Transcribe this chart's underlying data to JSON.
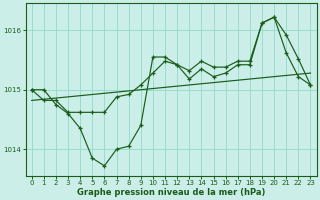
{
  "title": "Graphe pression niveau de la mer (hPa)",
  "background_color": "#cceee8",
  "grid_color": "#99ddcc",
  "line_color": "#1a5c1a",
  "x_ticks": [
    0,
    1,
    2,
    3,
    4,
    5,
    6,
    7,
    8,
    9,
    10,
    11,
    12,
    13,
    14,
    15,
    16,
    17,
    18,
    19,
    20,
    21,
    22,
    23
  ],
  "y_ticks": [
    1014,
    1015,
    1016
  ],
  "ylim": [
    1013.55,
    1016.45
  ],
  "xlim": [
    -0.5,
    23.5
  ],
  "y_main": [
    1015.0,
    1015.0,
    1014.75,
    1014.6,
    1014.35,
    1013.85,
    1013.72,
    1014.0,
    1014.05,
    1014.4,
    1015.55,
    1015.55,
    1015.42,
    1015.18,
    1015.35,
    1015.22,
    1015.28,
    1015.42,
    1015.42,
    1016.12,
    1016.22,
    1015.62,
    1015.22,
    1015.08
  ],
  "y_flat": [
    1014.82,
    1014.84,
    1014.86,
    1014.88,
    1014.9,
    1014.92,
    1014.94,
    1014.96,
    1014.98,
    1015.0,
    1015.02,
    1015.04,
    1015.06,
    1015.08,
    1015.1,
    1015.12,
    1015.14,
    1015.16,
    1015.18,
    1015.2,
    1015.22,
    1015.24,
    1015.26,
    1015.28
  ],
  "y_smooth": [
    1015.0,
    1014.82,
    1014.82,
    1014.62,
    1014.62,
    1014.62,
    1014.62,
    1014.88,
    1014.92,
    1015.08,
    1015.28,
    1015.48,
    1015.42,
    1015.32,
    1015.48,
    1015.38,
    1015.38,
    1015.48,
    1015.48,
    1016.12,
    1016.22,
    1015.92,
    1015.52,
    1015.08
  ],
  "title_fontsize": 6,
  "tick_fontsize": 5
}
